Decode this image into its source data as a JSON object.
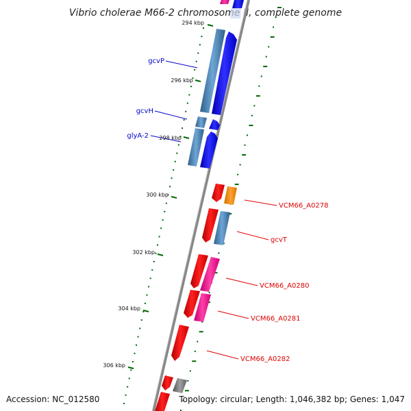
{
  "title": "Vibrio cholerae M66-2 chromosome II, complete genome",
  "footer": {
    "accession": "Accession: NC_012580",
    "topology": "Topology: circular; Length: 1,046,382 bp; Genes: 1,047"
  },
  "ticks": [
    "294 kbp",
    "296 kbp",
    "298 kbp",
    "300 kbp",
    "302 kbp",
    "304 kbp",
    "306 kbp"
  ],
  "genes": [
    {
      "name": "gcvP",
      "color": "#0000cc"
    },
    {
      "name": "gcvH",
      "color": "#0000cc"
    },
    {
      "name": "glyA-2",
      "color": "#0000cc"
    },
    {
      "name": "VCM66_A0278",
      "color": "#dd0000"
    },
    {
      "name": "gcvT",
      "color": "#dd0000"
    },
    {
      "name": "VCM66_A0280",
      "color": "#dd0000"
    },
    {
      "name": "VCM66_A0281",
      "color": "#dd0000"
    },
    {
      "name": "VCM66_A0282",
      "color": "#dd0000"
    }
  ],
  "colors": {
    "backbone": "#888888",
    "tick": "#006600",
    "cds_plus": "#0000ff",
    "cds_minus": "#ff0000",
    "blue_feature": "#4682b4",
    "orange_feature": "#ff8c00",
    "pink_feature": "#ff1493",
    "gray_feature": "#808080"
  }
}
